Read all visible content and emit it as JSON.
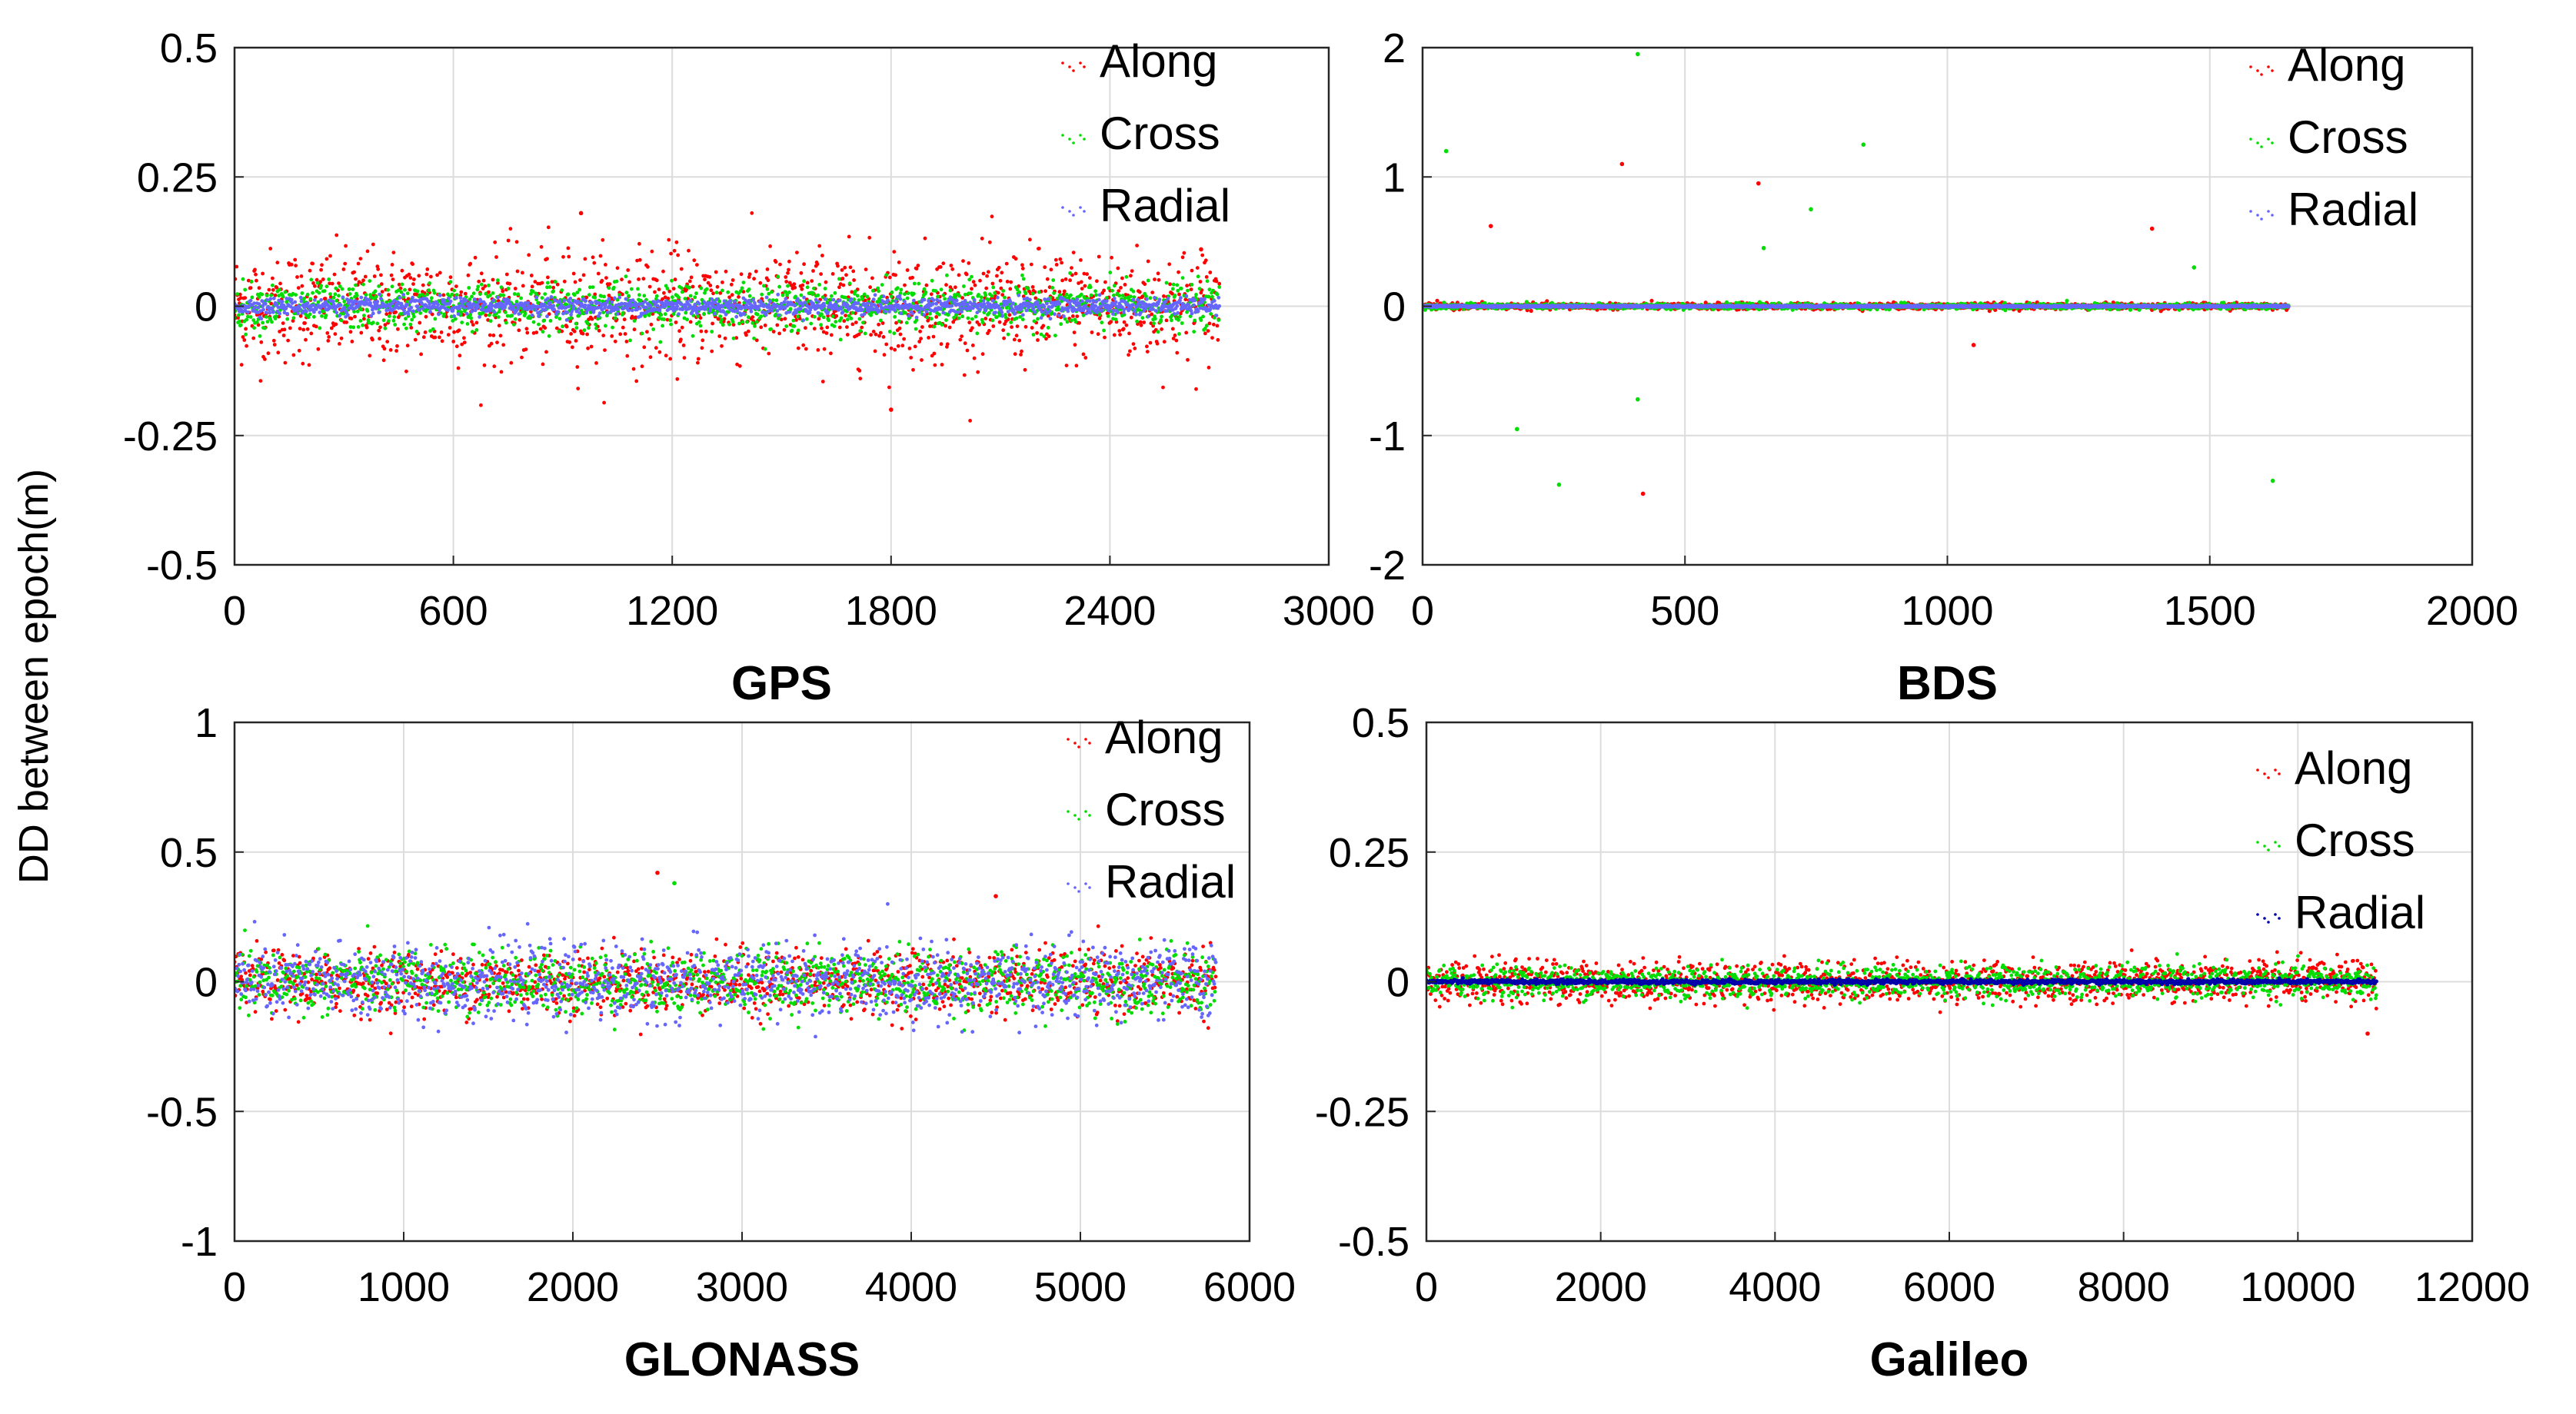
{
  "figure": {
    "ylabel": "DD between epoch(m)"
  },
  "chart_data": [
    {
      "type": "scatter",
      "title": "",
      "xlabel": "GPS",
      "ylabel": "DD between epoch(m)",
      "xlim": [
        0,
        3000
      ],
      "ylim": [
        -0.5,
        0.5
      ],
      "xticks": [
        0,
        600,
        1200,
        1800,
        2400,
        3000
      ],
      "xtick_labels": [
        "0",
        "600",
        "1200",
        "1800",
        "2400",
        "3000"
      ],
      "yticks": [
        0.5,
        0.25,
        0,
        -0.25,
        -0.5
      ],
      "ytick_labels": [
        "0.5",
        "0.25",
        "0",
        "-0.25",
        "-0.5"
      ],
      "grid": true,
      "legend": "top-right",
      "series": [
        {
          "name": "Along",
          "color": "#ff0000",
          "n_points": 2700,
          "x_range": [
            0,
            2700
          ],
          "std": 0.055,
          "outliers": [
            [
              950,
              0.18
            ],
            [
              1800,
              -0.2
            ],
            [
              2650,
              0.11
            ]
          ]
        },
        {
          "name": "Cross",
          "color": "#00dd00",
          "n_points": 2700,
          "x_range": [
            0,
            2700
          ],
          "std": 0.022,
          "outliers": []
        },
        {
          "name": "Radial",
          "color": "#6666ff",
          "n_points": 2700,
          "x_range": [
            0,
            2700
          ],
          "std": 0.008,
          "outliers": []
        }
      ]
    },
    {
      "type": "scatter",
      "title": "",
      "xlabel": "BDS",
      "ylabel": "",
      "xlim": [
        0,
        2000
      ],
      "ylim": [
        -2,
        2
      ],
      "xticks": [
        0,
        500,
        1000,
        1500,
        2000
      ],
      "xtick_labels": [
        "0",
        "500",
        "1000",
        "1500",
        "2000"
      ],
      "yticks": [
        2,
        1,
        0,
        -1,
        -2
      ],
      "ytick_labels": [
        "2",
        "1",
        "0",
        "-1",
        "-2"
      ],
      "grid": true,
      "legend": "top-right",
      "series": [
        {
          "name": "Along",
          "color": "#ff0000",
          "n_points": 1650,
          "x_range": [
            0,
            1650
          ],
          "std": 0.012,
          "outliers": [
            [
              380,
              1.1
            ],
            [
              640,
              0.95
            ],
            [
              1390,
              0.6
            ],
            [
              130,
              0.62
            ],
            [
              1050,
              -0.3
            ],
            [
              420,
              -1.45
            ]
          ]
        },
        {
          "name": "Cross",
          "color": "#00dd00",
          "n_points": 1650,
          "x_range": [
            0,
            1650
          ],
          "std": 0.01,
          "outliers": [
            [
              410,
              1.95
            ],
            [
              45,
              1.2
            ],
            [
              840,
              1.25
            ],
            [
              740,
              0.75
            ],
            [
              260,
              -1.38
            ],
            [
              1620,
              -1.35
            ],
            [
              180,
              -0.95
            ],
            [
              410,
              -0.72
            ],
            [
              650,
              0.45
            ],
            [
              1470,
              0.3
            ]
          ]
        },
        {
          "name": "Radial",
          "color": "#6666ff",
          "n_points": 1650,
          "x_range": [
            0,
            1650
          ],
          "std": 0.003,
          "outliers": []
        }
      ]
    },
    {
      "type": "scatter",
      "title": "",
      "xlabel": "GLONASS",
      "ylabel": "",
      "xlim": [
        0,
        6000
      ],
      "ylim": [
        -1,
        1
      ],
      "xticks": [
        0,
        1000,
        2000,
        3000,
        4000,
        5000,
        6000
      ],
      "xtick_labels": [
        "0",
        "1000",
        "2000",
        "3000",
        "4000",
        "5000",
        "6000"
      ],
      "yticks": [
        1,
        0.5,
        0,
        -0.5,
        -1
      ],
      "ytick_labels": [
        "1",
        "0.5",
        "0",
        "-0.5",
        "-1"
      ],
      "grid": true,
      "legend": "top-right",
      "series": [
        {
          "name": "Along",
          "color": "#ff0000",
          "n_points": 5800,
          "x_range": [
            0,
            5800
          ],
          "std": 0.06,
          "outliers": [
            [
              2500,
              0.42
            ],
            [
              4500,
              0.33
            ]
          ]
        },
        {
          "name": "Cross",
          "color": "#00dd00",
          "n_points": 5800,
          "x_range": [
            0,
            5800
          ],
          "std": 0.06,
          "outliers": [
            [
              2600,
              0.38
            ]
          ]
        },
        {
          "name": "Radial",
          "color": "#6666ff",
          "n_points": 5800,
          "x_range": [
            0,
            5800
          ],
          "std": 0.07,
          "outliers": []
        }
      ]
    },
    {
      "type": "scatter",
      "title": "",
      "xlabel": "Galileo",
      "ylabel": "",
      "xlim": [
        0,
        12000
      ],
      "ylim": [
        -0.5,
        0.5
      ],
      "xticks": [
        0,
        2000,
        4000,
        6000,
        8000,
        10000,
        12000
      ],
      "xtick_labels": [
        "0",
        "2000",
        "4000",
        "6000",
        "8000",
        "10000",
        "12000"
      ],
      "yticks": [
        0.5,
        0.25,
        0,
        -0.25,
        -0.5
      ],
      "ytick_labels": [
        "0.5",
        "0.25",
        "0",
        "-0.25",
        "-0.5"
      ],
      "grid": true,
      "legend": "top-right",
      "series": [
        {
          "name": "Along",
          "color": "#ff0000",
          "n_points": 10900,
          "x_range": [
            0,
            10900
          ],
          "std": 0.02,
          "outliers": [
            [
              10800,
              -0.1
            ]
          ]
        },
        {
          "name": "Cross",
          "color": "#00dd00",
          "n_points": 10900,
          "x_range": [
            0,
            10900
          ],
          "std": 0.015,
          "outliers": []
        },
        {
          "name": "Radial",
          "color": "#0000aa",
          "n_points": 10900,
          "x_range": [
            0,
            10900
          ],
          "std": 0.002,
          "outliers": []
        }
      ]
    }
  ]
}
